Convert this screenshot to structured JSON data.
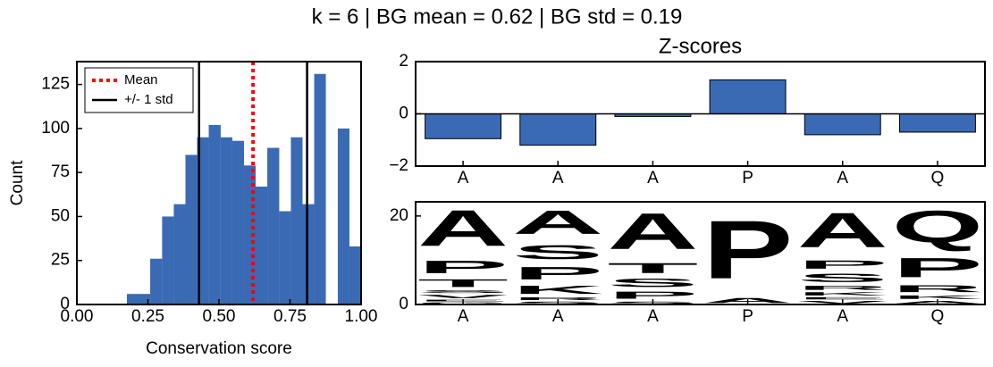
{
  "title": "k = 6 | BG mean = 0.62 | BG std = 0.19",
  "chart_data": [
    {
      "type": "histogram",
      "xlabel": "Conservation score",
      "ylabel": "Count",
      "bins": [
        0.176,
        0.217,
        0.258,
        0.3,
        0.341,
        0.382,
        0.423,
        0.464,
        0.506,
        0.547,
        0.588,
        0.629,
        0.67,
        0.712,
        0.753,
        0.794,
        0.835,
        0.876,
        0.918,
        0.959,
        1.0
      ],
      "values": [
        6,
        6,
        26,
        50,
        57,
        85,
        95,
        102,
        95,
        93,
        79,
        67,
        89,
        53,
        95,
        57,
        131,
        0,
        100,
        33
      ],
      "color": "#3a6ab4",
      "xlim": [
        0,
        1
      ],
      "ylim": [
        0,
        138
      ],
      "xticks": [
        {
          "value": 0,
          "label": "0.00"
        },
        {
          "value": 0.25,
          "label": "0.25"
        },
        {
          "value": 0.5,
          "label": "0.50"
        },
        {
          "value": 0.75,
          "label": "0.75"
        },
        {
          "value": 1,
          "label": "1.00"
        }
      ],
      "yticks": [
        0,
        25,
        50,
        75,
        100,
        125
      ],
      "legend": "upper left",
      "vlines": [
        {
          "name": "Mean",
          "values": [
            0.62
          ],
          "color": "#ff0000",
          "style": "dotted"
        },
        {
          "name": "+/- 1 std",
          "values": [
            0.43,
            0.81
          ],
          "color": "#000000",
          "style": "solid"
        }
      ]
    },
    {
      "type": "bar",
      "title": "Z-scores",
      "categories": [
        "A",
        "A",
        "A",
        "P",
        "A",
        "Q"
      ],
      "values": [
        -0.95,
        -1.2,
        -0.1,
        1.3,
        -0.8,
        -0.7
      ],
      "color": "#3a6ab4",
      "ylim": [
        -2,
        2
      ],
      "yticks": [
        {
          "value": -2,
          "label": "−2"
        },
        0,
        2
      ],
      "axhline": 0
    },
    {
      "type": "logo",
      "categories": [
        "A",
        "A",
        "A",
        "P",
        "A",
        "Q"
      ],
      "ylim": [
        0,
        23.2
      ],
      "yticks": [
        0,
        20
      ],
      "letter_colors": {
        "A": "#000000",
        "P": "#000000",
        "V": "#000000",
        "S": "#008000",
        "T": "#008000",
        "G": "#008000",
        "K": "#0000ff",
        "R": "#0000ff",
        "Q": "#800080",
        "E": "#ff0000"
      },
      "stacks": [
        {
          "letters": [
            "G",
            "E",
            "V",
            "S",
            "T",
            "P",
            "A"
          ],
          "heights": [
            0.6,
            0.6,
            1.2,
            1.0,
            2.8,
            4.5,
            13
          ]
        },
        {
          "letters": [
            "S",
            "R",
            "K",
            "P",
            "S",
            "A"
          ],
          "heights": [
            0.8,
            1.0,
            3.0,
            4.5,
            5.0,
            8.5
          ]
        },
        {
          "letters": [
            "S",
            "P",
            "S",
            "T",
            "A"
          ],
          "heights": [
            0.8,
            2.6,
            3.0,
            3.6,
            13
          ]
        },
        {
          "letters": [
            "A",
            "P"
          ],
          "heights": [
            1.8,
            21
          ]
        },
        {
          "letters": [
            "V",
            "E",
            "K",
            "R",
            "S",
            "P",
            "A"
          ],
          "heights": [
            1.0,
            0.8,
            1.2,
            1.5,
            3.0,
            3.0,
            12.5
          ]
        },
        {
          "letters": [
            "A",
            "K",
            "R",
            "P",
            "Q"
          ],
          "heights": [
            1.0,
            1.3,
            2.5,
            7,
            11.5
          ]
        }
      ]
    }
  ]
}
